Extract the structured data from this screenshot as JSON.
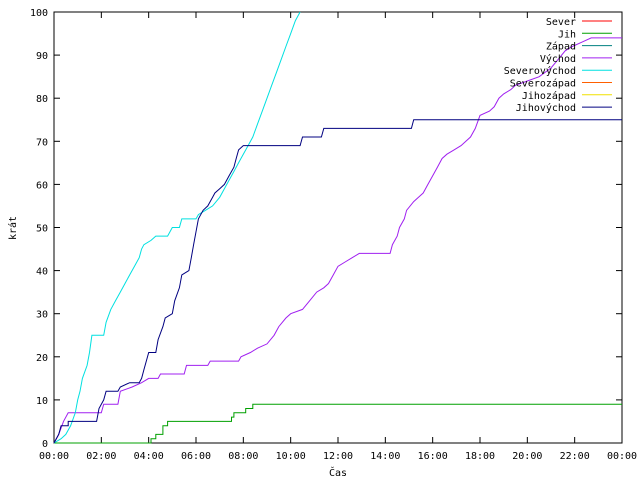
{
  "chart_data": {
    "type": "line",
    "title": "",
    "xlabel": "Čas",
    "ylabel": "krát",
    "xlim": [
      0,
      24
    ],
    "ylim": [
      0,
      100
    ],
    "x_ticks": [
      {
        "value": 0,
        "label": "00:00"
      },
      {
        "value": 2,
        "label": "02:00"
      },
      {
        "value": 4,
        "label": "04:00"
      },
      {
        "value": 6,
        "label": "06:00"
      },
      {
        "value": 8,
        "label": "08:00"
      },
      {
        "value": 10,
        "label": "10:00"
      },
      {
        "value": 12,
        "label": "12:00"
      },
      {
        "value": 14,
        "label": "14:00"
      },
      {
        "value": 16,
        "label": "16:00"
      },
      {
        "value": 18,
        "label": "18:00"
      },
      {
        "value": 20,
        "label": "20:00"
      },
      {
        "value": 22,
        "label": "22:00"
      },
      {
        "value": 24,
        "label": "00:00"
      }
    ],
    "y_ticks": [
      {
        "value": 0,
        "label": "0"
      },
      {
        "value": 10,
        "label": "10"
      },
      {
        "value": 20,
        "label": "20"
      },
      {
        "value": 30,
        "label": "30"
      },
      {
        "value": 40,
        "label": "40"
      },
      {
        "value": 50,
        "label": "50"
      },
      {
        "value": 60,
        "label": "60"
      },
      {
        "value": 70,
        "label": "70"
      },
      {
        "value": 80,
        "label": "80"
      },
      {
        "value": 90,
        "label": "90"
      },
      {
        "value": 100,
        "label": "100"
      }
    ],
    "grid": false,
    "legend_position": "top-right",
    "series": [
      {
        "name": "Sever",
        "color": "#ff0000",
        "points": []
      },
      {
        "name": "Jih",
        "color": "#00a000",
        "points": [
          [
            0,
            0
          ],
          [
            4.1,
            0
          ],
          [
            4.1,
            1
          ],
          [
            4.3,
            1
          ],
          [
            4.3,
            2
          ],
          [
            4.6,
            2
          ],
          [
            4.6,
            4
          ],
          [
            4.8,
            4
          ],
          [
            4.8,
            5
          ],
          [
            7.5,
            5
          ],
          [
            7.5,
            6
          ],
          [
            7.6,
            6
          ],
          [
            7.6,
            7
          ],
          [
            8.1,
            7
          ],
          [
            8.1,
            8
          ],
          [
            8.4,
            8
          ],
          [
            8.4,
            9
          ],
          [
            24,
            9
          ]
        ]
      },
      {
        "name": "Západ",
        "color": "#008080",
        "points": []
      },
      {
        "name": "Východ",
        "color": "#a020f0",
        "points": [
          [
            0,
            0
          ],
          [
            0.2,
            2
          ],
          [
            0.4,
            5
          ],
          [
            0.6,
            7
          ],
          [
            2.0,
            7
          ],
          [
            2.1,
            9
          ],
          [
            2.7,
            9
          ],
          [
            2.8,
            12
          ],
          [
            3.3,
            13
          ],
          [
            3.7,
            14
          ],
          [
            4.0,
            15
          ],
          [
            4.4,
            15
          ],
          [
            4.5,
            16
          ],
          [
            5.5,
            16
          ],
          [
            5.6,
            18
          ],
          [
            6.5,
            18
          ],
          [
            6.6,
            19
          ],
          [
            7.8,
            19
          ],
          [
            7.9,
            20
          ],
          [
            8.3,
            21
          ],
          [
            8.6,
            22
          ],
          [
            9.0,
            23
          ],
          [
            9.3,
            25
          ],
          [
            9.5,
            27
          ],
          [
            9.8,
            29
          ],
          [
            10.0,
            30
          ],
          [
            10.5,
            31
          ],
          [
            10.8,
            33
          ],
          [
            11.1,
            35
          ],
          [
            11.4,
            36
          ],
          [
            11.6,
            37
          ],
          [
            11.8,
            39
          ],
          [
            12.0,
            41
          ],
          [
            12.3,
            42
          ],
          [
            12.6,
            43
          ],
          [
            12.9,
            44
          ],
          [
            14.2,
            44
          ],
          [
            14.3,
            46
          ],
          [
            14.5,
            48
          ],
          [
            14.6,
            50
          ],
          [
            14.8,
            52
          ],
          [
            14.9,
            54
          ],
          [
            15.2,
            56
          ],
          [
            15.4,
            57
          ],
          [
            15.6,
            58
          ],
          [
            15.8,
            60
          ],
          [
            16.0,
            62
          ],
          [
            16.2,
            64
          ],
          [
            16.4,
            66
          ],
          [
            16.6,
            67
          ],
          [
            16.9,
            68
          ],
          [
            17.2,
            69
          ],
          [
            17.6,
            71
          ],
          [
            17.8,
            73
          ],
          [
            18.0,
            76
          ],
          [
            18.4,
            77
          ],
          [
            18.6,
            78
          ],
          [
            18.8,
            80
          ],
          [
            19.0,
            81
          ],
          [
            19.3,
            82
          ],
          [
            19.5,
            83
          ],
          [
            20.0,
            84
          ],
          [
            20.5,
            85
          ],
          [
            21.0,
            87
          ],
          [
            21.3,
            89
          ],
          [
            21.6,
            91
          ],
          [
            21.9,
            92
          ],
          [
            22.3,
            93
          ],
          [
            22.7,
            94
          ],
          [
            24,
            94
          ]
        ]
      },
      {
        "name": "Severovýchod",
        "color": "#00e0e0",
        "points": [
          [
            0,
            0
          ],
          [
            0.3,
            1
          ],
          [
            0.5,
            2
          ],
          [
            0.7,
            4
          ],
          [
            0.9,
            7
          ],
          [
            1.0,
            10
          ],
          [
            1.1,
            12
          ],
          [
            1.2,
            15
          ],
          [
            1.4,
            18
          ],
          [
            1.5,
            21
          ],
          [
            1.6,
            25
          ],
          [
            2.1,
            25
          ],
          [
            2.2,
            28
          ],
          [
            2.4,
            31
          ],
          [
            2.6,
            33
          ],
          [
            2.8,
            35
          ],
          [
            3.0,
            37
          ],
          [
            3.2,
            39
          ],
          [
            3.4,
            41
          ],
          [
            3.6,
            43
          ],
          [
            3.7,
            45
          ],
          [
            3.8,
            46
          ],
          [
            4.1,
            47
          ],
          [
            4.3,
            48
          ],
          [
            4.8,
            48
          ],
          [
            5.0,
            50
          ],
          [
            5.3,
            50
          ],
          [
            5.4,
            52
          ],
          [
            6.0,
            52
          ],
          [
            6.1,
            53
          ],
          [
            6.4,
            54
          ],
          [
            6.7,
            55
          ],
          [
            7.0,
            57
          ],
          [
            7.2,
            59
          ],
          [
            7.4,
            61
          ],
          [
            7.6,
            63
          ],
          [
            7.8,
            65
          ],
          [
            8.0,
            67
          ],
          [
            8.2,
            69
          ],
          [
            8.4,
            71
          ],
          [
            8.6,
            74
          ],
          [
            8.8,
            77
          ],
          [
            9.0,
            80
          ],
          [
            9.2,
            83
          ],
          [
            9.4,
            86
          ],
          [
            9.6,
            89
          ],
          [
            9.8,
            92
          ],
          [
            10.0,
            95
          ],
          [
            10.2,
            98
          ],
          [
            10.4,
            100
          ]
        ]
      },
      {
        "name": "Severozápad",
        "color": "#ff6000",
        "points": []
      },
      {
        "name": "Jihozápad",
        "color": "#f0e000",
        "points": []
      },
      {
        "name": "Jihovýchod",
        "color": "#000080",
        "points": [
          [
            0,
            0
          ],
          [
            0.2,
            2
          ],
          [
            0.3,
            4
          ],
          [
            0.6,
            4
          ],
          [
            0.6,
            5
          ],
          [
            1.8,
            5
          ],
          [
            1.9,
            8
          ],
          [
            2.1,
            10
          ],
          [
            2.2,
            12
          ],
          [
            2.7,
            12
          ],
          [
            2.8,
            13
          ],
          [
            3.2,
            14
          ],
          [
            3.6,
            14
          ],
          [
            3.7,
            15
          ],
          [
            3.8,
            17
          ],
          [
            4.0,
            21
          ],
          [
            4.3,
            21
          ],
          [
            4.4,
            24
          ],
          [
            4.6,
            27
          ],
          [
            4.7,
            29
          ],
          [
            5.0,
            30
          ],
          [
            5.1,
            33
          ],
          [
            5.3,
            36
          ],
          [
            5.4,
            39
          ],
          [
            5.7,
            40
          ],
          [
            5.8,
            43
          ],
          [
            5.9,
            46
          ],
          [
            6.0,
            49
          ],
          [
            6.1,
            52
          ],
          [
            6.3,
            54
          ],
          [
            6.5,
            55
          ],
          [
            6.7,
            57
          ],
          [
            6.8,
            58
          ],
          [
            7.0,
            59
          ],
          [
            7.2,
            60
          ],
          [
            7.4,
            62
          ],
          [
            7.6,
            64
          ],
          [
            7.7,
            66
          ],
          [
            7.8,
            68
          ],
          [
            8.0,
            69
          ],
          [
            10.4,
            69
          ],
          [
            10.5,
            71
          ],
          [
            11.3,
            71
          ],
          [
            11.4,
            73
          ],
          [
            15.1,
            73
          ],
          [
            15.2,
            75
          ],
          [
            24,
            75
          ]
        ]
      }
    ]
  }
}
